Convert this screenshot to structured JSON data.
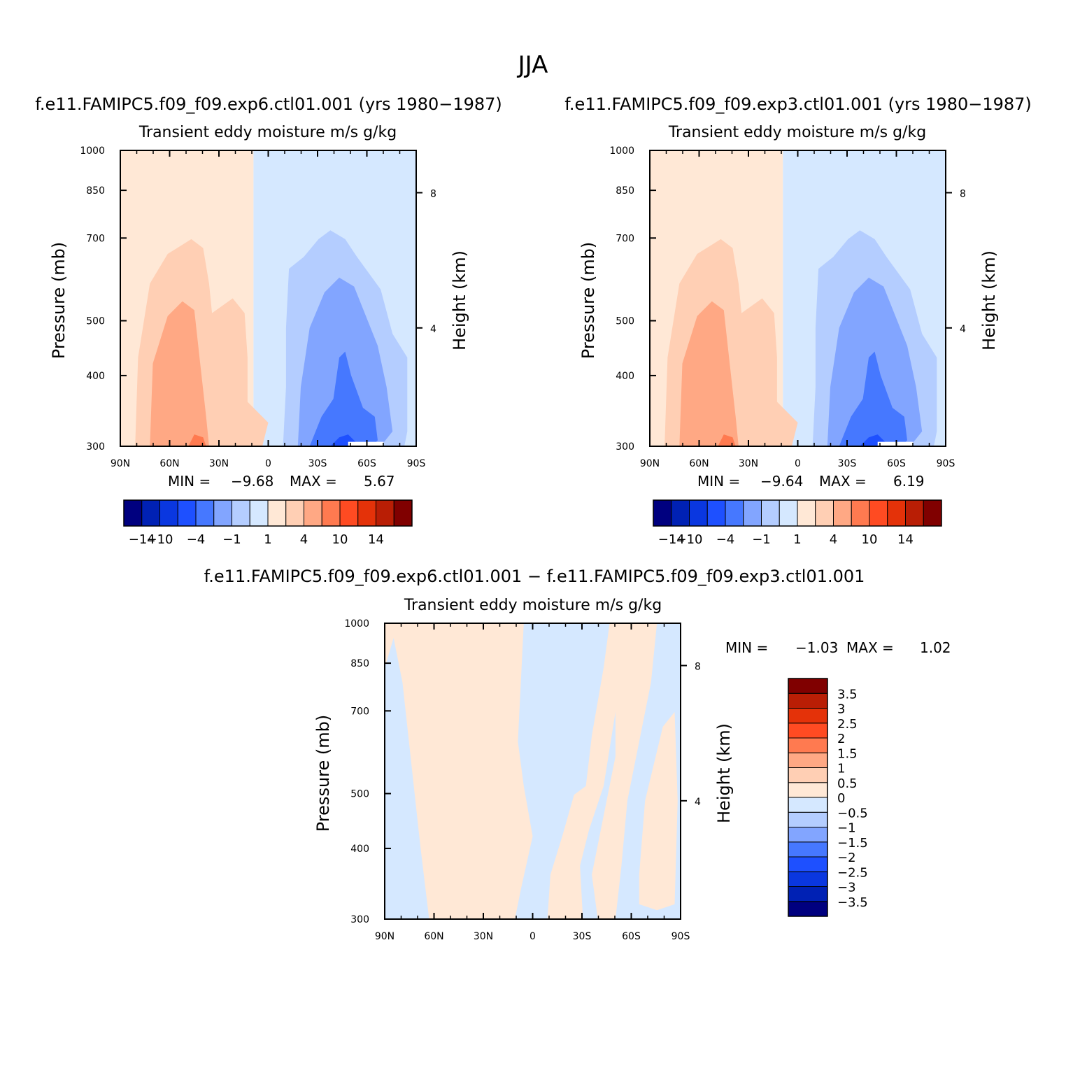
{
  "title": "JJA",
  "chart_data": [
    {
      "type": "heatmap",
      "panel": "left",
      "title": "f.e11.FAMIPC5.f09_f09.exp6.ctl01.001 (yrs 1980-1987)",
      "subtitle": "Transient eddy moisture",
      "units": "m/s g/kg",
      "ylabel": "Pressure (mb)",
      "y2label": "Height (km)",
      "x_ticks": [
        "90N",
        "60N",
        "30N",
        "0",
        "30S",
        "60S",
        "90S"
      ],
      "y_ticks": [
        "300",
        "400",
        "500",
        "700",
        "850",
        "1000"
      ],
      "y2_ticks": [
        "8",
        "4"
      ],
      "min_label": "MIN =",
      "min": "-9.68",
      "max_label": "MAX =",
      "max": "5.67",
      "colorbar_labels": [
        "-14",
        "-10",
        "-4",
        "-1",
        "1",
        "4",
        "10",
        "14"
      ]
    },
    {
      "type": "heatmap",
      "panel": "right",
      "title": "f.e11.FAMIPC5.f09_f09.exp3.ctl01.001 (yrs 1980-1987)",
      "subtitle": "Transient eddy moisture",
      "units": "m/s g/kg",
      "ylabel": "Pressure (mb)",
      "y2label": "Height (km)",
      "x_ticks": [
        "90N",
        "60N",
        "30N",
        "0",
        "30S",
        "60S",
        "90S"
      ],
      "y_ticks": [
        "300",
        "400",
        "500",
        "700",
        "850",
        "1000"
      ],
      "y2_ticks": [
        "8",
        "4"
      ],
      "min_label": "MIN =",
      "min": "-9.64",
      "max_label": "MAX =",
      "max": "6.19",
      "colorbar_labels": [
        "-14",
        "-10",
        "-4",
        "-1",
        "1",
        "4",
        "10",
        "14"
      ]
    },
    {
      "type": "heatmap",
      "panel": "diff",
      "title": "f.e11.FAMIPC5.f09_f09.exp6.ctl01.001 - f.e11.FAMIPC5.f09_f09.exp3.ctl01.001",
      "subtitle": "Transient eddy moisture",
      "units": "m/s g/kg",
      "ylabel": "Pressure (mb)",
      "y2label": "Height (km)",
      "x_ticks": [
        "90N",
        "60N",
        "30N",
        "0",
        "30S",
        "60S",
        "90S"
      ],
      "y_ticks": [
        "300",
        "400",
        "500",
        "700",
        "850",
        "1000"
      ],
      "y2_ticks": [
        "8",
        "4"
      ],
      "min_label": "MIN =",
      "min": "-1.03",
      "max_label": "MAX =",
      "max": "1.02",
      "colorbar_labels": [
        "3.5",
        "3",
        "2.5",
        "2",
        "1.5",
        "1",
        "0.5",
        "0",
        "-0.5",
        "-1",
        "-1.5",
        "-2",
        "-2.5",
        "-3",
        "-3.5"
      ]
    }
  ],
  "palette": [
    "#00007f",
    "#0021b4",
    "#0a37e0",
    "#1e50ff",
    "#4678ff",
    "#82a5ff",
    "#b4cdff",
    "#d5e8ff",
    "#ffe8d6",
    "#ffcfb4",
    "#ffa884",
    "#ff7a50",
    "#ff4b22",
    "#e43209",
    "#b91e05",
    "#800000"
  ],
  "colors": {
    "warm1": "#ffe8d6",
    "warm2": "#ffcfb4",
    "warm3": "#ffa884",
    "warm4": "#ff7a50",
    "cool1": "#d5e8ff",
    "cool2": "#b4cdff",
    "cool3": "#82a5ff",
    "cool4": "#4678ff",
    "cool5": "#1e50ff"
  }
}
